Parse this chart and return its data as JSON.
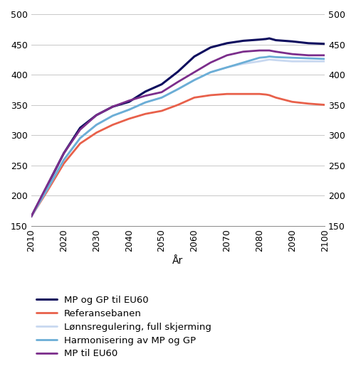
{
  "title": "",
  "xlabel": "År",
  "xlim": [
    2010,
    2100
  ],
  "ylim": [
    150,
    500
  ],
  "yticks": [
    150,
    200,
    250,
    300,
    350,
    400,
    450,
    500
  ],
  "xticks": [
    2010,
    2020,
    2030,
    2040,
    2050,
    2060,
    2070,
    2080,
    2090,
    2100
  ],
  "series": {
    "MP og GP til EU60": {
      "color": "#0d0d5e",
      "linewidth": 2.2,
      "data": {
        "x": [
          2010,
          2015,
          2020,
          2025,
          2030,
          2035,
          2040,
          2045,
          2050,
          2055,
          2060,
          2065,
          2070,
          2075,
          2080,
          2082,
          2083,
          2085,
          2090,
          2095,
          2100
        ],
        "y": [
          165,
          217,
          270,
          312,
          333,
          347,
          355,
          372,
          384,
          405,
          430,
          445,
          452,
          456,
          458,
          459,
          460,
          457,
          455,
          452,
          451
        ]
      }
    },
    "Referansebanen": {
      "color": "#e8604a",
      "linewidth": 2.0,
      "data": {
        "x": [
          2010,
          2015,
          2020,
          2025,
          2030,
          2035,
          2040,
          2045,
          2050,
          2055,
          2060,
          2065,
          2070,
          2075,
          2080,
          2082,
          2083,
          2085,
          2090,
          2095,
          2100
        ],
        "y": [
          165,
          208,
          253,
          286,
          304,
          317,
          327,
          335,
          340,
          350,
          362,
          366,
          368,
          368,
          368,
          367,
          366,
          362,
          355,
          352,
          350
        ]
      }
    },
    "Lønnsregulering, full skjerming": {
      "color": "#c8d8f0",
      "linewidth": 2.0,
      "data": {
        "x": [
          2010,
          2015,
          2020,
          2025,
          2030,
          2035,
          2040,
          2045,
          2050,
          2055,
          2060,
          2065,
          2070,
          2075,
          2080,
          2082,
          2083,
          2085,
          2090,
          2095,
          2100
        ],
        "y": [
          165,
          211,
          259,
          295,
          317,
          332,
          342,
          354,
          362,
          376,
          391,
          404,
          412,
          418,
          422,
          424,
          425,
          424,
          422,
          422,
          422
        ]
      }
    },
    "Harmonisering av MP og GP": {
      "color": "#6baed6",
      "linewidth": 2.0,
      "data": {
        "x": [
          2010,
          2015,
          2020,
          2025,
          2030,
          2035,
          2040,
          2045,
          2050,
          2055,
          2060,
          2065,
          2070,
          2075,
          2080,
          2082,
          2083,
          2085,
          2090,
          2095,
          2100
        ],
        "y": [
          165,
          211,
          259,
          295,
          317,
          332,
          342,
          354,
          362,
          376,
          391,
          404,
          412,
          420,
          428,
          429,
          430,
          429,
          428,
          427,
          426
        ]
      }
    },
    "MP til EU60": {
      "color": "#7b2d8b",
      "linewidth": 2.0,
      "data": {
        "x": [
          2010,
          2015,
          2020,
          2025,
          2030,
          2035,
          2040,
          2045,
          2050,
          2055,
          2060,
          2065,
          2070,
          2075,
          2080,
          2082,
          2083,
          2085,
          2090,
          2095,
          2100
        ],
        "y": [
          165,
          218,
          270,
          309,
          333,
          347,
          357,
          365,
          371,
          388,
          404,
          420,
          432,
          438,
          440,
          440,
          440,
          438,
          434,
          432,
          432
        ]
      }
    }
  },
  "legend_order": [
    "MP og GP til EU60",
    "Referansebanen",
    "Lønnsregulering, full skjerming",
    "Harmonisering av MP og GP",
    "MP til EU60"
  ],
  "grid_color": "#c8c8c8",
  "background_color": "#ffffff",
  "legend_fontsize": 9.5,
  "axis_fontsize": 9,
  "xlabel_fontsize": 10
}
